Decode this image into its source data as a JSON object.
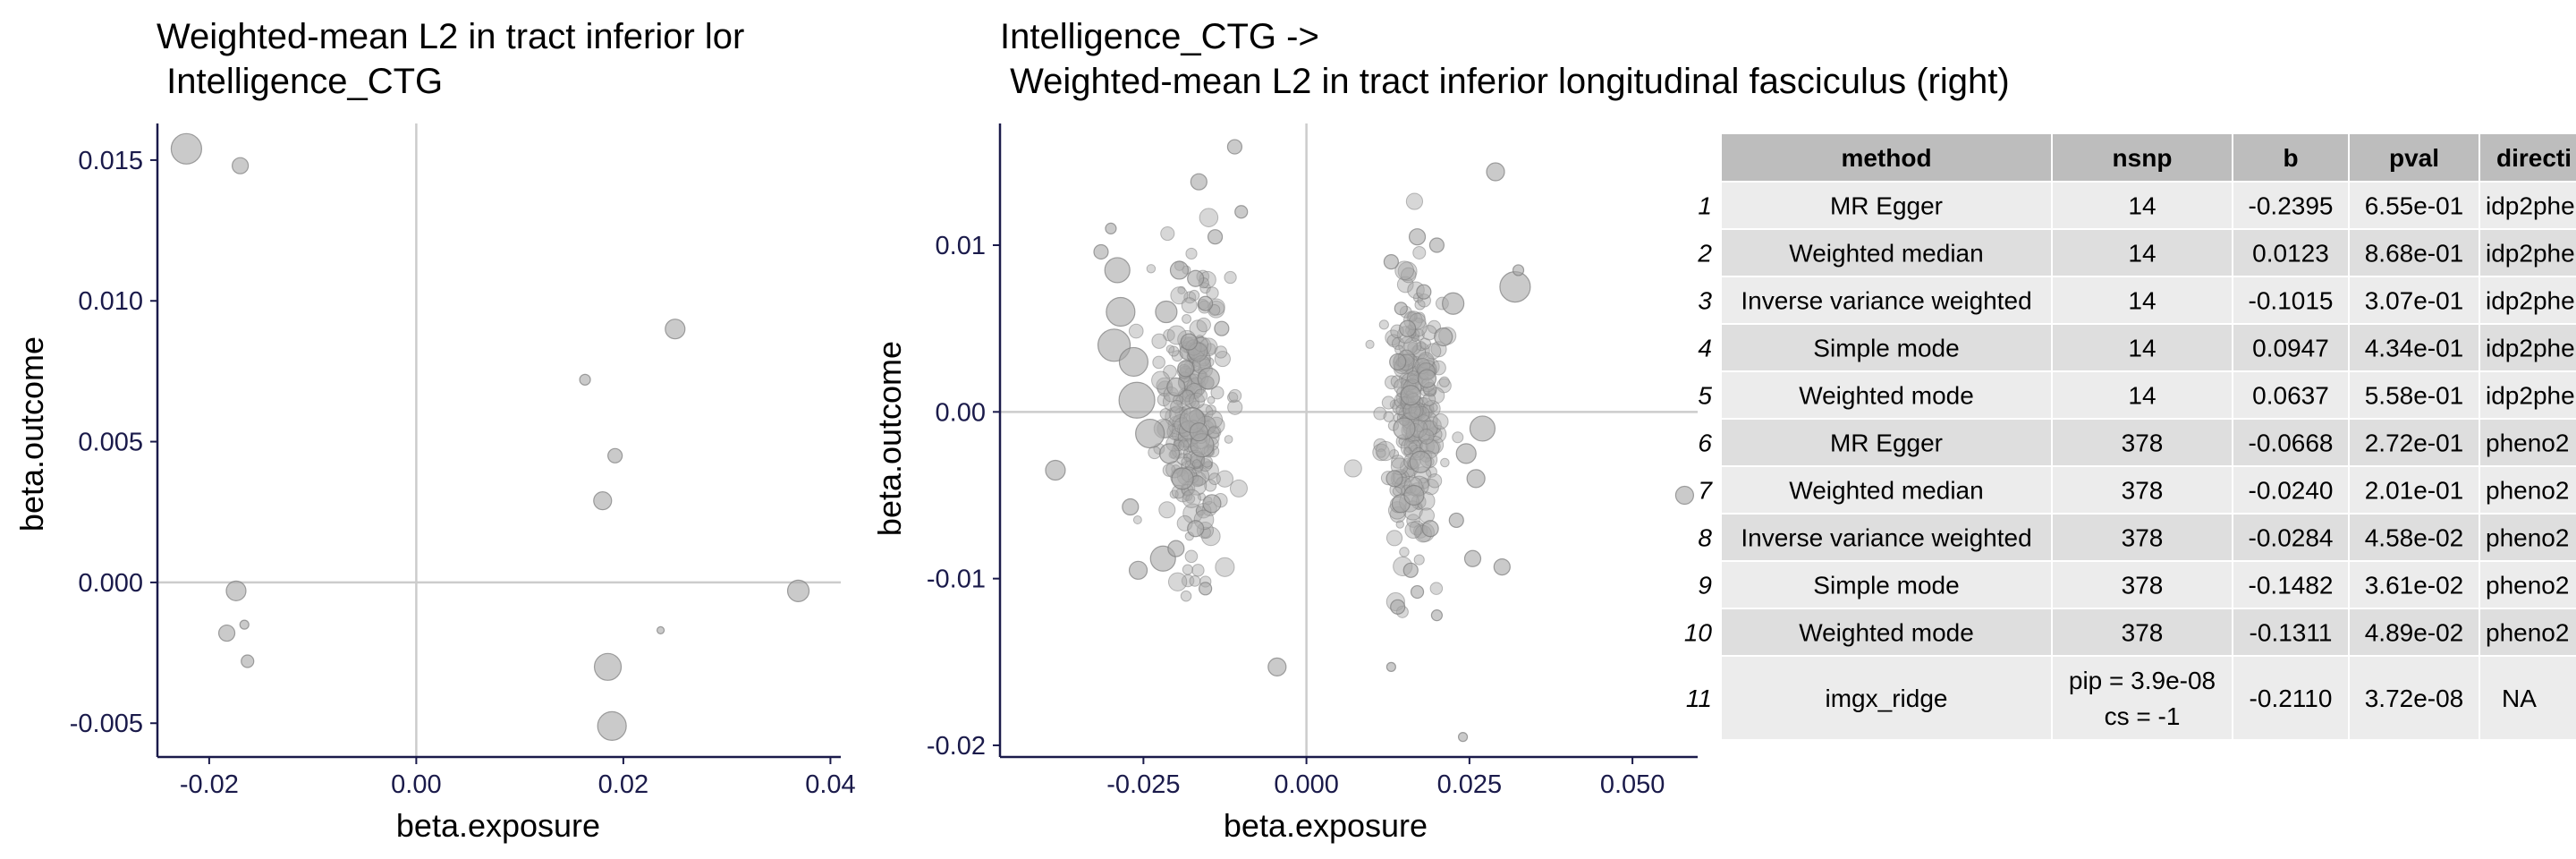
{
  "chart_data": [
    {
      "type": "scatter",
      "title_lines": [
        "Weighted-mean L2 in tract inferior lor",
        " Intelligence_CTG"
      ],
      "xlabel": "beta.exposure",
      "ylabel": "beta.outcome",
      "xlim": [
        -0.025,
        0.041
      ],
      "ylim": [
        -0.0062,
        0.0163
      ],
      "xticks": [
        "-0.02",
        "0.00",
        "0.02",
        "0.04"
      ],
      "yticks": [
        "-0.005",
        "0.000",
        "0.005",
        "0.010",
        "0.015"
      ],
      "reference_lines": {
        "x": 0,
        "y": 0
      },
      "points": [
        {
          "x": -0.0222,
          "y": 0.0154,
          "s": 17
        },
        {
          "x": -0.017,
          "y": 0.0148,
          "s": 9
        },
        {
          "x": -0.0174,
          "y": -0.0003,
          "s": 11
        },
        {
          "x": -0.0183,
          "y": -0.0018,
          "s": 9
        },
        {
          "x": -0.0166,
          "y": -0.0015,
          "s": 5
        },
        {
          "x": -0.0163,
          "y": -0.0028,
          "s": 7
        },
        {
          "x": 0.0163,
          "y": 0.0072,
          "s": 6
        },
        {
          "x": 0.025,
          "y": 0.009,
          "s": 11
        },
        {
          "x": 0.0192,
          "y": 0.0045,
          "s": 8
        },
        {
          "x": 0.018,
          "y": 0.0029,
          "s": 10
        },
        {
          "x": 0.0236,
          "y": -0.0017,
          "s": 4
        },
        {
          "x": 0.0185,
          "y": -0.003,
          "s": 15
        },
        {
          "x": 0.0189,
          "y": -0.0051,
          "s": 16
        },
        {
          "x": 0.0369,
          "y": -0.0003,
          "s": 12
        }
      ]
    },
    {
      "type": "scatter",
      "title_lines": [
        "Intelligence_CTG ->",
        " Weighted-mean L2 in tract inferior longitudinal fasciculus (right)"
      ],
      "xlabel": "beta.exposure",
      "ylabel": "beta.outcome",
      "xlim": [
        -0.047,
        0.06
      ],
      "ylim": [
        -0.0207,
        0.0173
      ],
      "xticks": [
        "-0.025",
        "0.000",
        "0.025",
        "0.050"
      ],
      "yticks": [
        "-0.02",
        "-0.01",
        "0.00",
        "0.01"
      ],
      "reference_lines": {
        "x": 0,
        "y": 0
      },
      "points": [
        {
          "x": -0.0045,
          "y": -0.0153,
          "s": 10
        },
        {
          "x": -0.0385,
          "y": -0.0035,
          "s": 11
        },
        {
          "x": -0.011,
          "y": 0.0159,
          "s": 8
        },
        {
          "x": -0.03,
          "y": 0.011,
          "s": 6
        },
        {
          "x": -0.0315,
          "y": 0.0096,
          "s": 8
        },
        {
          "x": -0.029,
          "y": 0.0085,
          "s": 14
        },
        {
          "x": -0.0285,
          "y": 0.006,
          "s": 16
        },
        {
          "x": -0.0295,
          "y": 0.004,
          "s": 18
        },
        {
          "x": -0.0265,
          "y": 0.003,
          "s": 16
        },
        {
          "x": -0.026,
          "y": 0.0007,
          "s": 20
        },
        {
          "x": -0.024,
          "y": -0.0013,
          "s": 16
        },
        {
          "x": -0.0258,
          "y": -0.0095,
          "s": 10
        },
        {
          "x": -0.027,
          "y": -0.0057,
          "s": 9
        },
        {
          "x": -0.022,
          "y": -0.0088,
          "s": 14
        },
        {
          "x": -0.01,
          "y": 0.012,
          "s": 7
        },
        {
          "x": -0.0165,
          "y": 0.0138,
          "s": 9
        },
        {
          "x": -0.0155,
          "y": -0.0106,
          "s": 7
        },
        {
          "x": -0.0195,
          "y": 0.0085,
          "s": 10
        },
        {
          "x": -0.017,
          "y": 0.008,
          "s": 9
        },
        {
          "x": -0.014,
          "y": 0.0105,
          "s": 8
        },
        {
          "x": -0.0215,
          "y": 0.006,
          "s": 12
        },
        {
          "x": -0.018,
          "y": 0.0042,
          "s": 9
        },
        {
          "x": -0.015,
          "y": 0.002,
          "s": 12
        },
        {
          "x": -0.02,
          "y": 0.0015,
          "s": 10
        },
        {
          "x": -0.0175,
          "y": -0.0005,
          "s": 14
        },
        {
          "x": -0.016,
          "y": -0.002,
          "s": 13
        },
        {
          "x": -0.019,
          "y": -0.004,
          "s": 12
        },
        {
          "x": -0.0145,
          "y": -0.0055,
          "s": 10
        },
        {
          "x": -0.017,
          "y": -0.007,
          "s": 9
        },
        {
          "x": -0.02,
          "y": -0.0082,
          "s": 9
        },
        {
          "x": -0.0165,
          "y": -0.0012,
          "s": 10
        },
        {
          "x": -0.0185,
          "y": 0.0026,
          "s": 9
        },
        {
          "x": -0.013,
          "y": 0.005,
          "s": 8
        },
        {
          "x": -0.021,
          "y": -0.0025,
          "s": 11
        },
        {
          "x": -0.0155,
          "y": 0.0065,
          "s": 8
        },
        {
          "x": 0.013,
          "y": 0.009,
          "s": 8
        },
        {
          "x": 0.017,
          "y": 0.0105,
          "s": 9
        },
        {
          "x": 0.02,
          "y": 0.01,
          "s": 8
        },
        {
          "x": 0.0225,
          "y": 0.0065,
          "s": 12
        },
        {
          "x": 0.021,
          "y": 0.0045,
          "s": 10
        },
        {
          "x": 0.014,
          "y": 0.003,
          "s": 9
        },
        {
          "x": 0.016,
          "y": 0.001,
          "s": 11
        },
        {
          "x": 0.015,
          "y": -0.001,
          "s": 12
        },
        {
          "x": 0.0175,
          "y": -0.003,
          "s": 12
        },
        {
          "x": 0.0145,
          "y": -0.0055,
          "s": 10
        },
        {
          "x": 0.019,
          "y": -0.007,
          "s": 9
        },
        {
          "x": 0.016,
          "y": -0.0095,
          "s": 8
        },
        {
          "x": 0.014,
          "y": -0.0117,
          "s": 8
        },
        {
          "x": 0.02,
          "y": -0.0122,
          "s": 6
        },
        {
          "x": 0.017,
          "y": -0.0108,
          "s": 7
        },
        {
          "x": 0.029,
          "y": 0.0144,
          "s": 10
        },
        {
          "x": 0.032,
          "y": 0.0075,
          "s": 17
        },
        {
          "x": 0.0325,
          "y": 0.0085,
          "s": 6
        },
        {
          "x": 0.027,
          "y": -0.001,
          "s": 14
        },
        {
          "x": 0.0245,
          "y": -0.0025,
          "s": 11
        },
        {
          "x": 0.026,
          "y": -0.004,
          "s": 10
        },
        {
          "x": 0.0255,
          "y": -0.0088,
          "s": 9
        },
        {
          "x": 0.03,
          "y": -0.0093,
          "s": 9
        },
        {
          "x": 0.023,
          "y": -0.0065,
          "s": 8
        },
        {
          "x": 0.024,
          "y": -0.0195,
          "s": 5
        },
        {
          "x": 0.013,
          "y": -0.0153,
          "s": 5
        },
        {
          "x": 0.058,
          "y": -0.005,
          "s": 10
        },
        {
          "x": 0.0155,
          "y": 0.005,
          "s": 9
        },
        {
          "x": 0.0185,
          "y": 0.002,
          "s": 10
        },
        {
          "x": 0.0135,
          "y": -0.004,
          "s": 9
        },
        {
          "x": 0.0165,
          "y": -0.005,
          "s": 11
        },
        {
          "x": 0.018,
          "y": 0.0072,
          "s": 8
        },
        {
          "x": 0.0145,
          "y": 0.0062,
          "s": 7
        }
      ],
      "cluster_bands": [
        {
          "x_center": -0.0175,
          "x_spread": 0.0045,
          "y_center": 0.0,
          "y_spread": 0.0042,
          "count": 230,
          "s_min": 4,
          "s_max": 11
        },
        {
          "x_center": 0.016,
          "x_spread": 0.004,
          "y_center": 0.0,
          "y_spread": 0.004,
          "count": 230,
          "s_min": 4,
          "s_max": 11
        }
      ]
    },
    {
      "type": "table",
      "columns": [
        "method",
        "nsnp",
        "b",
        "pval",
        "directi"
      ],
      "rows": [
        {
          "idx": "1",
          "method": "MR Egger",
          "nsnp": "14",
          "b": "-0.2395",
          "pval": "6.55e-01",
          "direction": "idp2phe"
        },
        {
          "idx": "2",
          "method": "Weighted median",
          "nsnp": "14",
          "b": "0.0123",
          "pval": "8.68e-01",
          "direction": "idp2phe"
        },
        {
          "idx": "3",
          "method": "Inverse variance weighted",
          "nsnp": "14",
          "b": "-0.1015",
          "pval": "3.07e-01",
          "direction": "idp2phe"
        },
        {
          "idx": "4",
          "method": "Simple mode",
          "nsnp": "14",
          "b": "0.0947",
          "pval": "4.34e-01",
          "direction": "idp2phe"
        },
        {
          "idx": "5",
          "method": "Weighted mode",
          "nsnp": "14",
          "b": "0.0637",
          "pval": "5.58e-01",
          "direction": "idp2phe"
        },
        {
          "idx": "6",
          "method": "MR Egger",
          "nsnp": "378",
          "b": "-0.0668",
          "pval": "2.72e-01",
          "direction": "pheno2"
        },
        {
          "idx": "7",
          "method": "Weighted median",
          "nsnp": "378",
          "b": "-0.0240",
          "pval": "2.01e-01",
          "direction": "pheno2"
        },
        {
          "idx": "8",
          "method": "Inverse variance weighted",
          "nsnp": "378",
          "b": "-0.0284",
          "pval": "4.58e-02",
          "direction": "pheno2"
        },
        {
          "idx": "9",
          "method": "Simple mode",
          "nsnp": "378",
          "b": "-0.1482",
          "pval": "3.61e-02",
          "direction": "pheno2"
        },
        {
          "idx": "10",
          "method": "Weighted mode",
          "nsnp": "378",
          "b": "-0.1311",
          "pval": "4.89e-02",
          "direction": "pheno2"
        },
        {
          "idx": "11",
          "method": "imgx_ridge",
          "nsnp": "pip = 3.9e-08",
          "nsnp_line2": "cs = -1",
          "b": "-0.2110",
          "pval": "3.72e-08",
          "direction": "NA"
        }
      ]
    }
  ],
  "colors": {
    "point_fill": "#a6a6a6",
    "point_stroke": "#7a7a7a",
    "axis": "#1a1a4a",
    "reference_line": "#cccccc",
    "table_header_bg": "#bdbdbd",
    "table_row_light": "#ececec",
    "table_row_dark": "#dedede"
  }
}
